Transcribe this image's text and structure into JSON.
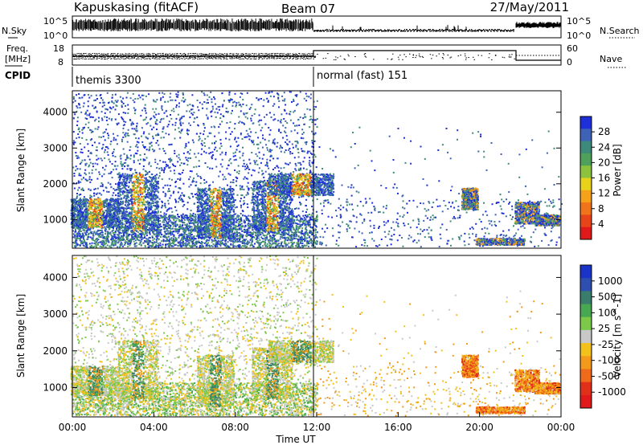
{
  "header": {
    "station": "Kapuskasing (fitACF)",
    "beam": "Beam 07",
    "date": "27/May/2011"
  },
  "panels": {
    "nsky_label": "N.Sky",
    "nsearch_label": "N.Search",
    "freq_label": "Freq.",
    "freq_unit": "[MHz]",
    "nave_label": "Nave",
    "cpid_label": "CPID",
    "nsky_ticks": [
      "10^5",
      "10^0"
    ],
    "nsearch_ticks": [
      "10^5",
      "10^0"
    ],
    "freq_ticks": [
      "18",
      "8"
    ],
    "nave_ticks": [
      "60",
      "0"
    ],
    "cpid_segments": [
      {
        "label": "themis 3300",
        "start_hour": 0,
        "end_hour": 12
      },
      {
        "label": "normal (fast) 151",
        "start_hour": 12,
        "end_hour": 24
      }
    ]
  },
  "chart_data": [
    {
      "type": "heatmap",
      "name": "power",
      "ylabel": "Slant Range [km]",
      "xlabel": "Time UT",
      "ylim": [
        200,
        4600
      ],
      "xlim": [
        0,
        24
      ],
      "yticks": [
        "1000",
        "2000",
        "3000",
        "4000"
      ],
      "xticks": [
        "00:00",
        "04:00",
        "08:00",
        "12:00",
        "16:00",
        "20:00",
        "00:00"
      ],
      "colorbar": {
        "label": "Power [dB]",
        "ticks": [
          "4",
          "8",
          "12",
          "16",
          "20",
          "24",
          "28"
        ],
        "colors": [
          "#1c2fd8",
          "#3e63b6",
          "#3e8a7a",
          "#4fa05a",
          "#8dc23f",
          "#e8d21a",
          "#f5a21a",
          "#f0741a",
          "#e8441a",
          "#e01a1a"
        ]
      }
    },
    {
      "type": "heatmap",
      "name": "velocity",
      "ylabel": "Slant Range [km]",
      "xlabel": "Time UT",
      "ylim": [
        200,
        4600
      ],
      "xlim": [
        0,
        24
      ],
      "yticks": [
        "1000",
        "2000",
        "3000",
        "4000"
      ],
      "xticks": [
        "00:00",
        "04:00",
        "08:00",
        "12:00",
        "16:00",
        "20:00",
        "00:00"
      ],
      "colorbar": {
        "label": "Velocity [m s^-1]",
        "ticks": [
          "1000",
          "500",
          "100",
          "25",
          "-25",
          "-100",
          "-500",
          "-1000"
        ],
        "colors": [
          "#1a33c9",
          "#2f4fb0",
          "#3a7d6c",
          "#47a851",
          "#7cc94a",
          "#c8c8c8",
          "#f2c11a",
          "#f39a1a",
          "#ef6a1a",
          "#e0301a",
          "#e01a1a"
        ]
      }
    }
  ],
  "footer": {
    "xlabel": "Time UT"
  }
}
